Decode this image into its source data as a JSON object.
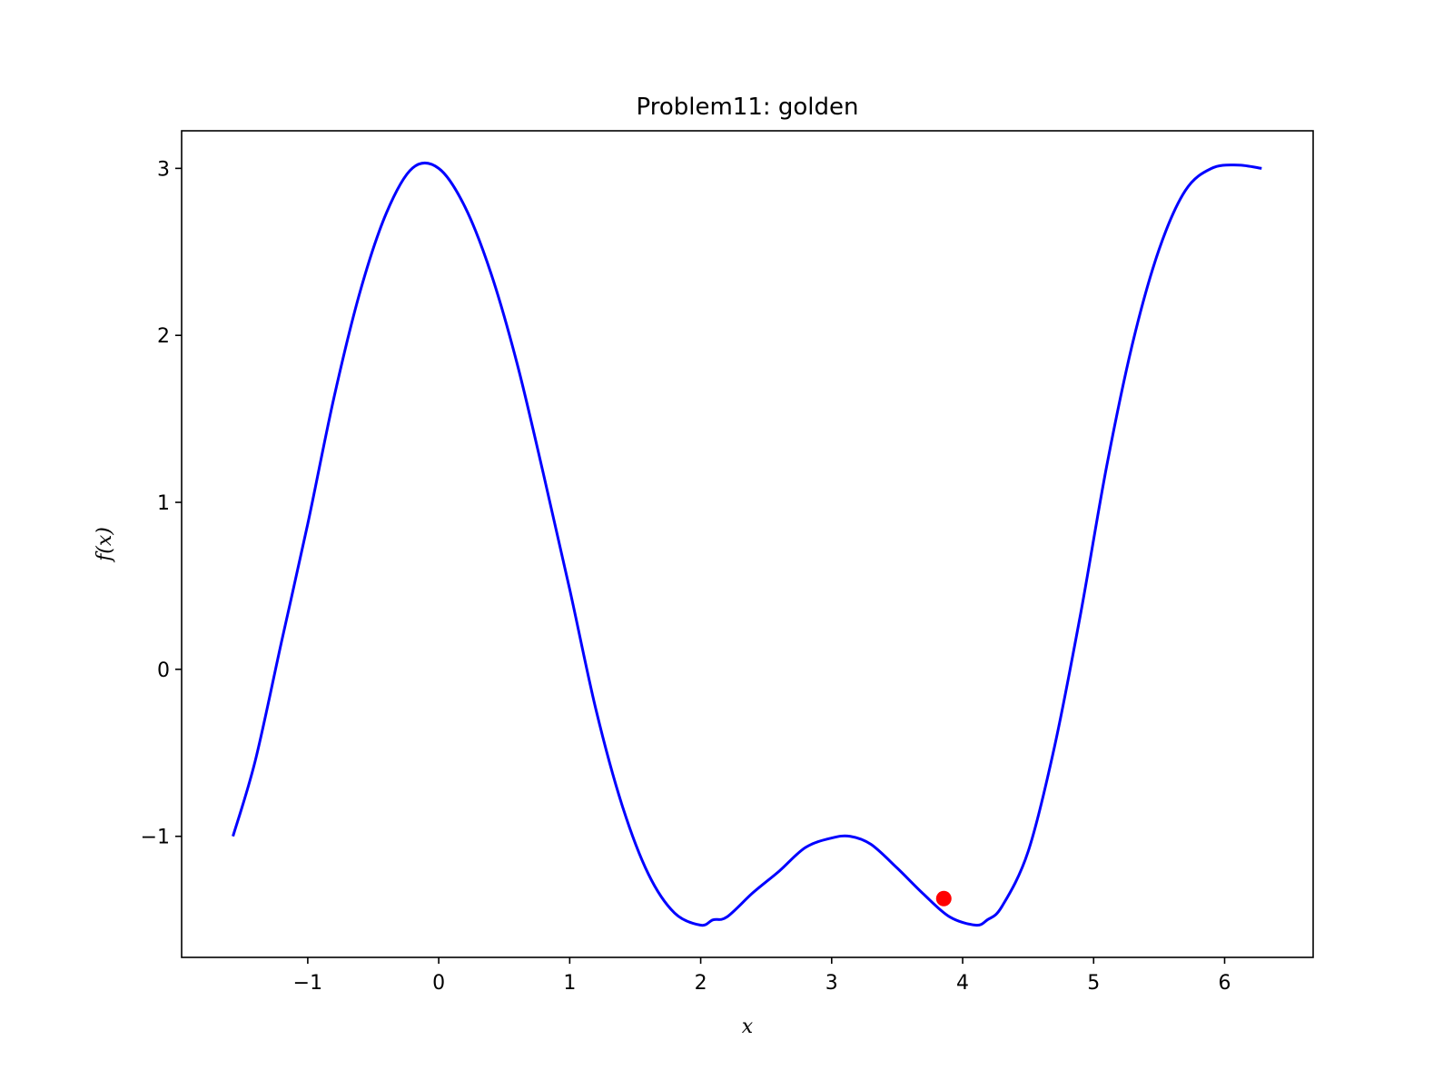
{
  "chart_data": {
    "type": "line",
    "title": "Problem11: golden",
    "xlabel": "x",
    "ylabel": "f(x)",
    "xlim": [
      -1.963,
      6.676
    ],
    "ylim": [
      -1.725,
      3.225
    ],
    "xticks": [
      -1,
      0,
      1,
      2,
      3,
      4,
      5,
      6
    ],
    "xtick_labels": [
      "−1",
      "0",
      "1",
      "2",
      "3",
      "4",
      "5",
      "6"
    ],
    "yticks": [
      -1,
      0,
      1,
      2,
      3
    ],
    "ytick_labels": [
      "−1",
      "0",
      "1",
      "2",
      "3"
    ],
    "grid": false,
    "legend": "none",
    "series": [
      {
        "color": "#0000ff",
        "x": [
          -1.571,
          -1.4,
          -1.2,
          -1.0,
          -0.8,
          -0.6,
          -0.4,
          -0.2,
          0.0,
          0.2,
          0.4,
          0.6,
          0.8,
          1.0,
          1.2,
          1.4,
          1.6,
          1.8,
          2.0,
          2.094,
          2.2,
          2.4,
          2.6,
          2.8,
          3.0,
          3.142,
          3.3,
          3.5,
          3.7,
          3.9,
          4.1,
          4.189,
          4.3,
          4.5,
          4.7,
          4.9,
          5.1,
          5.3,
          5.5,
          5.7,
          5.9,
          6.1,
          6.283
        ],
        "y": [
          -1.0,
          -0.545,
          0.166,
          0.871,
          1.627,
          2.263,
          2.732,
          3.002,
          3.0,
          2.77,
          2.369,
          1.826,
          1.168,
          0.479,
          -0.24,
          -0.814,
          -1.225,
          -1.459,
          -1.532,
          -1.5,
          -1.483,
          -1.337,
          -1.208,
          -1.067,
          -1.01,
          -1.0,
          -1.048,
          -1.19,
          -1.345,
          -1.482,
          -1.532,
          -1.5,
          -1.42,
          -1.091,
          -0.468,
          0.33,
          1.218,
          1.961,
          2.515,
          2.867,
          3.0,
          3.02,
          3.0
        ]
      }
    ],
    "points": [
      {
        "color": "#ff0000",
        "x": 3.856,
        "y": -1.373
      }
    ]
  }
}
